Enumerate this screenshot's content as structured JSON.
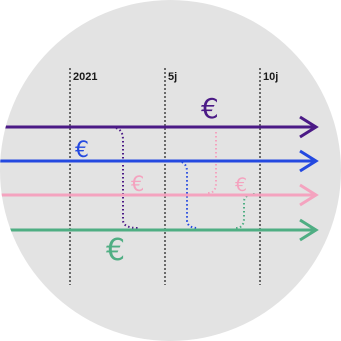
{
  "timeline": {
    "labels": [
      "2021",
      "5j",
      "10j"
    ]
  },
  "currency_symbol": "€",
  "colors": {
    "background_circle": "#e3e3e3",
    "gridline": "#1a1a1a",
    "purple": "#4b1a86",
    "blue": "#2449e0",
    "pink": "#f4a3bf",
    "green": "#4fae83"
  },
  "lanes": [
    {
      "name": "purple-lane",
      "color": "purple"
    },
    {
      "name": "blue-lane",
      "color": "blue"
    },
    {
      "name": "pink-lane",
      "color": "pink"
    },
    {
      "name": "green-lane",
      "color": "green"
    }
  ],
  "icons": [
    "arrow-head-icon",
    "euro-icon"
  ]
}
